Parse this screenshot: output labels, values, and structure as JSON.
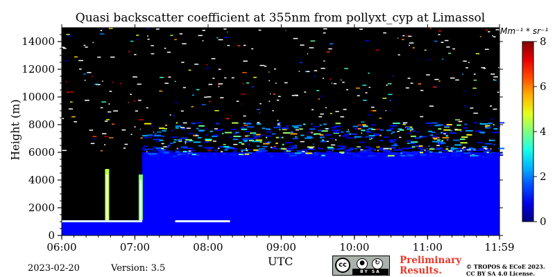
{
  "title": "Quasi backscatter coefficient at 355nm from pollyxt_cyp at Limassol",
  "colorbar_unit": "Mm⁻¹ * sr⁻¹",
  "footer": {
    "date": "2023-02-20",
    "version": "Version: 3.5",
    "license_badge": {
      "symbol": "cc",
      "parts": [
        "BY",
        "SA"
      ]
    },
    "preliminary_line1": "Preliminary",
    "preliminary_line2": "Results.",
    "copyright_line1": "© TROPOS & ECoE 2023.",
    "copyright_line2": "CC BY SA 4.0 License."
  },
  "colors": {
    "background": "#000000",
    "preliminary": "#e8372a"
  },
  "chart_data": {
    "type": "heatmap",
    "title": "Quasi backscatter coefficient at 355nm from pollyxt_cyp at Limassol",
    "xlabel": "UTC",
    "ylabel": "Height (m)",
    "x_tick_labels": [
      "06:00",
      "07:00",
      "08:00",
      "09:00",
      "10:00",
      "11:00",
      "11:59"
    ],
    "x_ticks_hours": [
      6.0,
      7.0,
      8.0,
      9.0,
      10.0,
      11.0,
      11.9833
    ],
    "xlim_hours": [
      6.0,
      11.9833
    ],
    "y_ticks": [
      0,
      2000,
      4000,
      6000,
      8000,
      10000,
      12000,
      14000
    ],
    "ylim": [
      0,
      15000
    ],
    "colorbar": {
      "label": "Mm⁻¹ * sr⁻¹",
      "range": [
        0,
        8
      ],
      "ticks": [
        0,
        2,
        4,
        6,
        8
      ],
      "colormap": "jet"
    },
    "features": [
      {
        "name": "surface layer",
        "x_start_hours": 6.0,
        "x_end_hours": 8.4,
        "height_top": 1100,
        "value": 6.5
      },
      {
        "name": "spike",
        "x_hours": 6.62,
        "height_top": 4800,
        "value": 4.5
      },
      {
        "name": "spike",
        "x_hours": 7.08,
        "height_top": 4400,
        "value": 4.0
      },
      {
        "name": "aerosol layer",
        "x_start_hours": 7.1,
        "x_end_hours": 11.9833,
        "height_top": 6000,
        "value": 1.0
      },
      {
        "name": "scattered cloud/noise band",
        "height_range": [
          5800,
          8200
        ],
        "value_range": [
          3,
          6
        ]
      }
    ]
  }
}
